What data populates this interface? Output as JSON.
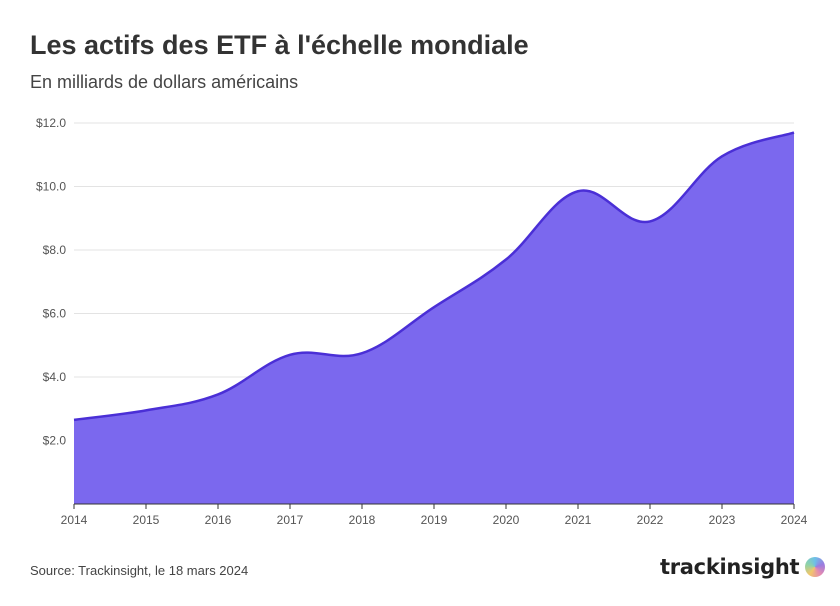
{
  "header": {
    "title": "Les actifs des ETF à l'échelle mondiale",
    "subtitle": "En milliards de dollars américains"
  },
  "footer": {
    "source": "Source: Trackinsight, le 18 mars 2024",
    "brand": "trackinsight",
    "brand_logo_icon": "trackinsight-logo-icon"
  },
  "chart_data": {
    "type": "area",
    "title": "Les actifs des ETF à l'échelle mondiale",
    "subtitle": "En milliards de dollars américains",
    "xlabel": "",
    "ylabel": "",
    "x": [
      2014,
      2015,
      2016,
      2017,
      2018,
      2019,
      2020,
      2021,
      2022,
      2023,
      2024
    ],
    "x_ticks": [
      "2014",
      "2015",
      "2016",
      "2017",
      "2018",
      "2019",
      "2020",
      "2021",
      "2022",
      "2023",
      "2024"
    ],
    "series": [
      {
        "values": [
          2.65,
          2.95,
          3.45,
          4.7,
          4.75,
          6.2,
          7.7,
          9.85,
          8.9,
          10.95,
          11.7
        ]
      }
    ],
    "ylim": [
      0,
      12
    ],
    "y_ticks": [
      2,
      4,
      6,
      8,
      10,
      12
    ],
    "y_tick_labels": [
      "$2.0",
      "$4.0",
      "$6.0",
      "$8.0",
      "$10.0",
      "$12.0"
    ],
    "grid": true,
    "colors": {
      "fill": "#7b68ee",
      "line": "#4a2fd6",
      "grid": "#e3e3e3",
      "baseline": "#333333"
    }
  }
}
